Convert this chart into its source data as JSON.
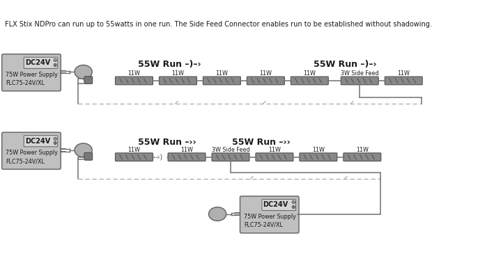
{
  "title_text": "FLX Stix NDPro can run up to 55watts in one run. The Side Feed Connector enables run to be established without shadowing.",
  "bg_color": "#ffffff",
  "psu_fill": "#c0c0c0",
  "psu_inner_fill": "#d8d8d8",
  "driver_fill": "#b0b0b0",
  "connector_fill": "#909090",
  "bar_fill": "#888888",
  "bar_edge": "#505050",
  "wire_color": "#707070",
  "dash_color": "#aaaaaa",
  "text_color": "#1a1a1a",
  "top_run1_label": "55W Run –)–›",
  "top_run2_label": "55W Run –)–›",
  "bot_run1_label": "55W Run –››",
  "bot_run2_label": "55W Run –››",
  "top_lights": [
    "11W",
    "11W",
    "11W",
    "11W",
    "11W",
    "3W Side Feed",
    "11W"
  ],
  "bot_lights": [
    "11W",
    "11W",
    "3W Side Feed",
    "11W",
    "11W",
    "11W"
  ],
  "psu_dc_label": "DC24V",
  "psu_text": "75W Power Supply\nFLC75-24V/XL"
}
